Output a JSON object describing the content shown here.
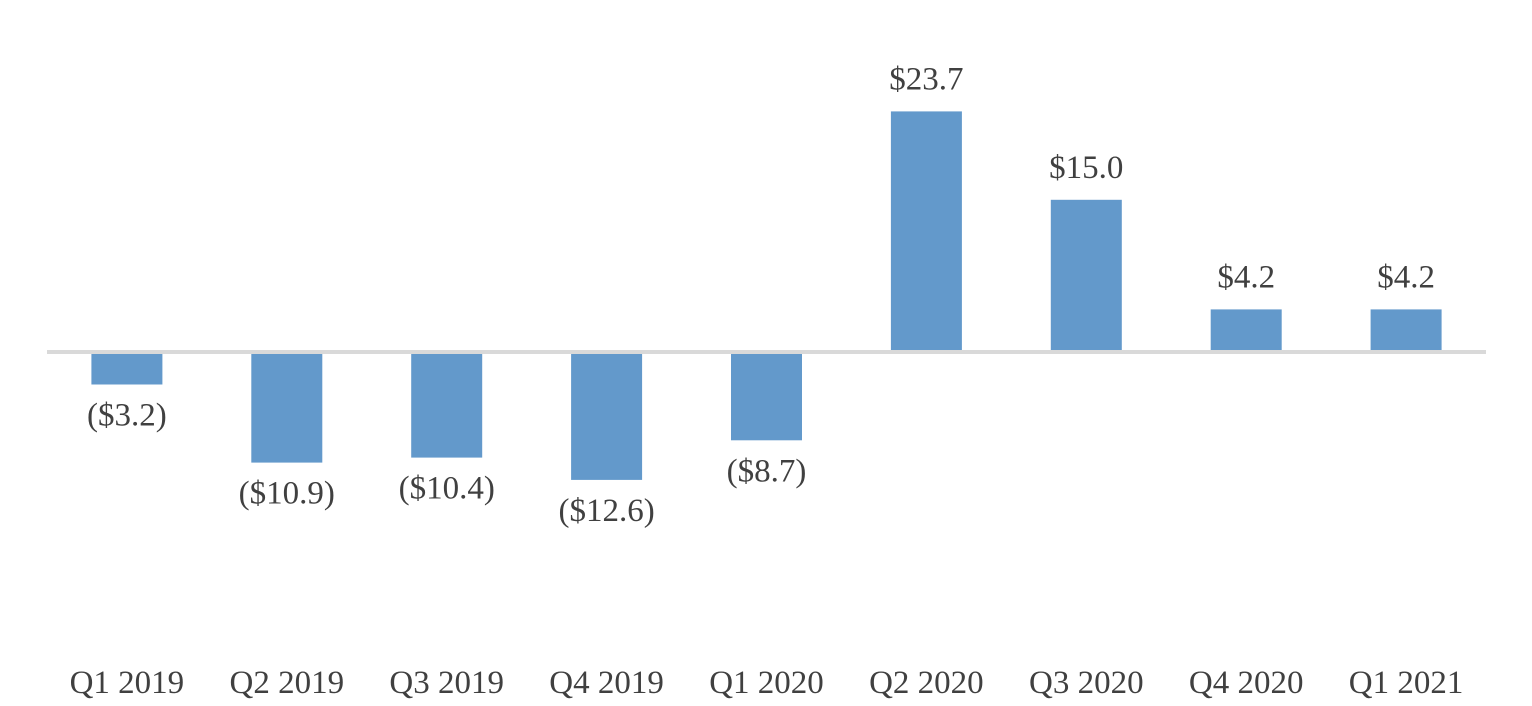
{
  "chart_data": {
    "type": "bar",
    "title": "",
    "xlabel": "",
    "ylabel": "",
    "ylim": [
      -15,
      27
    ],
    "categories": [
      "Q1 2019",
      "Q2 2019",
      "Q3 2019",
      "Q4 2019",
      "Q1 2020",
      "Q2 2020",
      "Q3 2020",
      "Q4 2020",
      "Q1 2021"
    ],
    "values": [
      -3.2,
      -10.9,
      -10.4,
      -12.6,
      -8.7,
      23.7,
      15.0,
      4.2,
      4.2
    ],
    "data_labels": [
      "($3.2)",
      "($10.9)",
      "($10.4)",
      "($12.6)",
      "($8.7)",
      "$23.7",
      "$15.0",
      "$4.2",
      "$4.2"
    ],
    "grid": false,
    "legend": "none"
  },
  "colors": {
    "bar": "#6399cb",
    "axis_line": "#d9d9d9",
    "text": "#404040"
  }
}
